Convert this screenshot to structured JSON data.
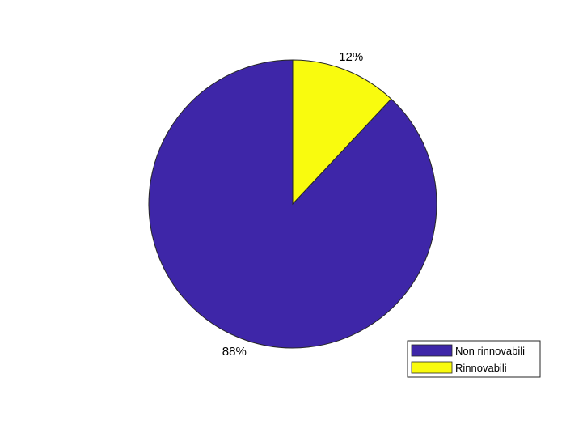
{
  "chart_data": {
    "type": "pie",
    "title": "",
    "start_angle_deg": 90,
    "direction": "clockwise",
    "slices": [
      {
        "name": "Rinnovabili",
        "value": 12,
        "label": "12%",
        "color": "#F9FB0E"
      },
      {
        "name": "Non rinnovabili",
        "value": 88,
        "label": "88%",
        "color": "#3E26A8"
      }
    ],
    "legend": {
      "placement": "bottom-right",
      "entries": [
        {
          "label": "Non rinnovabili",
          "color": "#3E26A8"
        },
        {
          "label": "Rinnovabili",
          "color": "#F9FB0E"
        }
      ]
    }
  }
}
